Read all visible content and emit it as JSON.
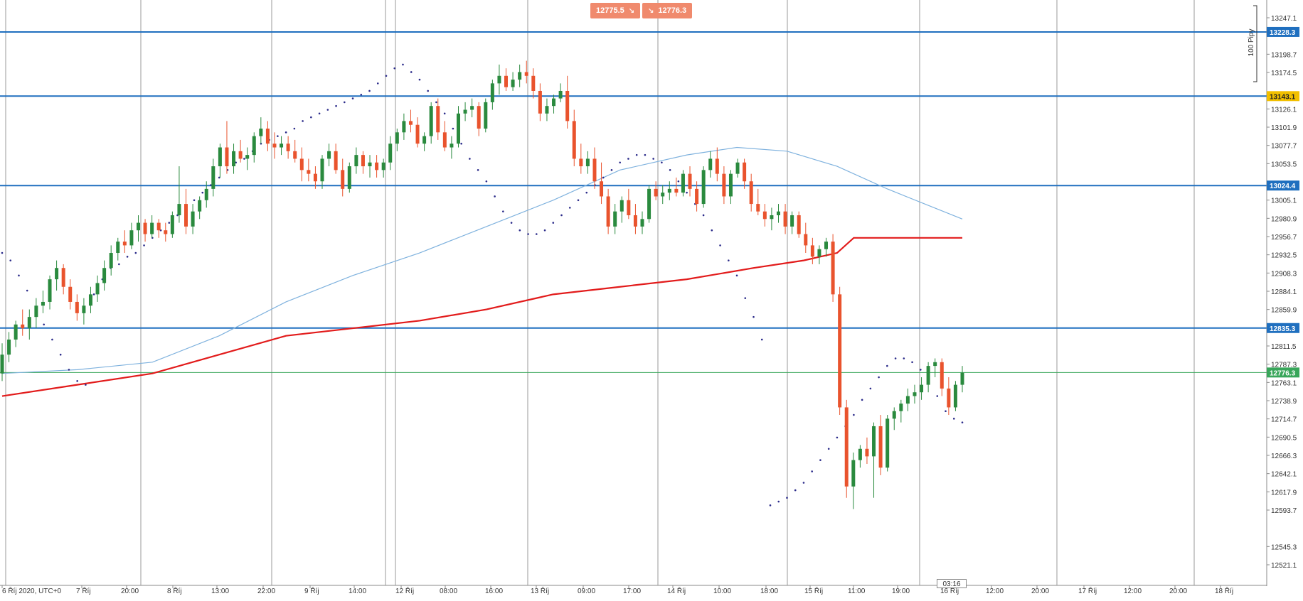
{
  "toolbar": {
    "sell_price": "12775.5",
    "buy_price": "12776.3",
    "sell_arrow": "↘",
    "buy_arrow": "↘"
  },
  "range_marker": {
    "label": "100 Pipy"
  },
  "countdown": "03:16",
  "colors": {
    "bull": "#2a8a3e",
    "bear": "#e9532d",
    "level_line": "#1f6fbf",
    "ma_slow": "#e21b1b",
    "ma_fast": "#7fb2de",
    "psar": "#2b2b8a",
    "current": "#38a65a",
    "warn_tag": "#f2c000"
  },
  "chart_data": {
    "type": "candlestick",
    "y_ticks": [
      "13247.1",
      "13198.7",
      "13174.5",
      "13126.1",
      "13101.9",
      "13077.7",
      "13053.5",
      "13005.1",
      "12980.9",
      "12956.7",
      "12932.5",
      "12908.3",
      "12884.1",
      "12859.9",
      "12811.5",
      "12787.3",
      "12763.1",
      "12738.9",
      "12714.7",
      "12690.5",
      "12666.3",
      "12642.1",
      "12617.9",
      "12593.7",
      "12545.3",
      "12521.1"
    ],
    "x_ticks": [
      "6 Říj 2020, UTC+0",
      "7 Říj",
      "20:00",
      "8 Říj",
      "13:00",
      "22:00",
      "9 Říj",
      "14:00",
      "12 Říj",
      "08:00",
      "16:00",
      "13 Říj",
      "09:00",
      "17:00",
      "14 Říj",
      "10:00",
      "18:00",
      "15 Říj",
      "11:00",
      "19:00",
      "16 Říj",
      "12:00",
      "20:00",
      "17 Říj",
      "12:00",
      "20:00",
      "18 Říj"
    ],
    "levels": [
      {
        "label": "13228.3",
        "value": 13228.3,
        "style": "blue"
      },
      {
        "label": "13143.1",
        "value": 13143.1,
        "style": "yellow"
      },
      {
        "label": "13024.4",
        "value": 13024.4,
        "style": "blue"
      },
      {
        "label": "12835.3",
        "value": 12835.3,
        "style": "blue"
      },
      {
        "label": "12776.3",
        "value": 12776.3,
        "style": "green"
      }
    ],
    "candles": [
      [
        12775,
        12815,
        12765,
        12800
      ],
      [
        12800,
        12830,
        12790,
        12820
      ],
      [
        12820,
        12845,
        12810,
        12840
      ],
      [
        12840,
        12860,
        12825,
        12835
      ],
      [
        12835,
        12860,
        12820,
        12850
      ],
      [
        12850,
        12875,
        12835,
        12865
      ],
      [
        12865,
        12885,
        12855,
        12870
      ],
      [
        12870,
        12905,
        12860,
        12900
      ],
      [
        12900,
        12925,
        12885,
        12915
      ],
      [
        12915,
        12920,
        12880,
        12890
      ],
      [
        12890,
        12900,
        12860,
        12870
      ],
      [
        12870,
        12880,
        12845,
        12855
      ],
      [
        12855,
        12875,
        12840,
        12865
      ],
      [
        12865,
        12890,
        12855,
        12880
      ],
      [
        12880,
        12905,
        12870,
        12895
      ],
      [
        12895,
        12925,
        12885,
        12915
      ],
      [
        12915,
        12945,
        12905,
        12935
      ],
      [
        12935,
        12955,
        12925,
        12950
      ],
      [
        12950,
        12965,
        12935,
        12945
      ],
      [
        12945,
        12975,
        12940,
        12965
      ],
      [
        12965,
        12985,
        12950,
        12975
      ],
      [
        12975,
        12980,
        12950,
        12960
      ],
      [
        12960,
        12985,
        12955,
        12975
      ],
      [
        12975,
        12980,
        12955,
        12965
      ],
      [
        12965,
        12975,
        12950,
        12960
      ],
      [
        12960,
        12990,
        12955,
        12985
      ],
      [
        12985,
        13050,
        12975,
        13000
      ],
      [
        13000,
        13020,
        12960,
        12970
      ],
      [
        12970,
        13000,
        12960,
        12990
      ],
      [
        12990,
        13010,
        12980,
        13005
      ],
      [
        13005,
        13030,
        12995,
        13020
      ],
      [
        13020,
        13060,
        13010,
        13050
      ],
      [
        13050,
        13080,
        13035,
        13075
      ],
      [
        13075,
        13110,
        13040,
        13050
      ],
      [
        13050,
        13080,
        13040,
        13070
      ],
      [
        13070,
        13085,
        13055,
        13060
      ],
      [
        13060,
        13075,
        13045,
        13065
      ],
      [
        13065,
        13095,
        13055,
        13090
      ],
      [
        13090,
        13115,
        13080,
        13100
      ],
      [
        13100,
        13110,
        13070,
        13080
      ],
      [
        13080,
        13095,
        13060,
        13075
      ],
      [
        13075,
        13090,
        13065,
        13080
      ],
      [
        13080,
        13090,
        13060,
        13070
      ],
      [
        13070,
        13085,
        13055,
        13060
      ],
      [
        13060,
        13075,
        13030,
        13045
      ],
      [
        13045,
        13060,
        13030,
        13040
      ],
      [
        13040,
        13050,
        13020,
        13030
      ],
      [
        13030,
        13065,
        13020,
        13060
      ],
      [
        13060,
        13080,
        13050,
        13070
      ],
      [
        13070,
        13080,
        13040,
        13045
      ],
      [
        13045,
        13060,
        13010,
        13020
      ],
      [
        13020,
        13055,
        13015,
        13050
      ],
      [
        13050,
        13075,
        13040,
        13065
      ],
      [
        13065,
        13070,
        13040,
        13050
      ],
      [
        13050,
        13065,
        13035,
        13055
      ],
      [
        13055,
        13065,
        13035,
        13045
      ],
      [
        13045,
        13060,
        13035,
        13055
      ],
      [
        13055,
        13090,
        13045,
        13080
      ],
      [
        13080,
        13100,
        13070,
        13095
      ],
      [
        13095,
        13120,
        13085,
        13110
      ],
      [
        13110,
        13125,
        13095,
        13105
      ],
      [
        13105,
        13115,
        13075,
        13080
      ],
      [
        13080,
        13095,
        13070,
        13090
      ],
      [
        13090,
        13135,
        13080,
        13130
      ],
      [
        13130,
        13140,
        13085,
        13095
      ],
      [
        13095,
        13110,
        13070,
        13075
      ],
      [
        13075,
        13090,
        13060,
        13080
      ],
      [
        13080,
        13130,
        13075,
        13120
      ],
      [
        13120,
        13135,
        13110,
        13125
      ],
      [
        13125,
        13140,
        13115,
        13130
      ],
      [
        13130,
        13135,
        13090,
        13100
      ],
      [
        13100,
        13140,
        13095,
        13135
      ],
      [
        13135,
        13165,
        13125,
        13160
      ],
      [
        13160,
        13185,
        13145,
        13170
      ],
      [
        13170,
        13180,
        13150,
        13155
      ],
      [
        13155,
        13175,
        13150,
        13165
      ],
      [
        13165,
        13185,
        13155,
        13175
      ],
      [
        13175,
        13190,
        13160,
        13170
      ],
      [
        13170,
        13180,
        13140,
        13150
      ],
      [
        13150,
        13160,
        13110,
        13120
      ],
      [
        13120,
        13140,
        13110,
        13130
      ],
      [
        13130,
        13145,
        13120,
        13140
      ],
      [
        13140,
        13160,
        13135,
        13150
      ],
      [
        13150,
        13170,
        13100,
        13110
      ],
      [
        13110,
        13125,
        13050,
        13060
      ],
      [
        13060,
        13080,
        13040,
        13050
      ],
      [
        13050,
        13070,
        13040,
        13060
      ],
      [
        13060,
        13075,
        13020,
        13030
      ],
      [
        13030,
        13055,
        13000,
        13010
      ],
      [
        13010,
        13020,
        12960,
        12970
      ],
      [
        12970,
        13000,
        12960,
        12990
      ],
      [
        12990,
        13010,
        12975,
        13005
      ],
      [
        13005,
        13020,
        12980,
        12985
      ],
      [
        12985,
        13000,
        12960,
        12970
      ],
      [
        12970,
        12990,
        12960,
        12980
      ],
      [
        12980,
        13025,
        12975,
        13020
      ],
      [
        13020,
        13030,
        13005,
        13010
      ],
      [
        13010,
        13025,
        13000,
        13015
      ],
      [
        13015,
        13030,
        13005,
        13020
      ],
      [
        13020,
        13035,
        13010,
        13015
      ],
      [
        13015,
        13045,
        13010,
        13040
      ],
      [
        13040,
        13050,
        13010,
        13020
      ],
      [
        13020,
        13030,
        12990,
        13000
      ],
      [
        13000,
        13050,
        12995,
        13045
      ],
      [
        13045,
        13070,
        13035,
        13060
      ],
      [
        13060,
        13075,
        13030,
        13040
      ],
      [
        13040,
        13050,
        13000,
        13010
      ],
      [
        13010,
        13045,
        13000,
        13040
      ],
      [
        13040,
        13060,
        13035,
        13055
      ],
      [
        13055,
        13060,
        13020,
        13030
      ],
      [
        13030,
        13040,
        12990,
        13000
      ],
      [
        13000,
        13020,
        12985,
        12990
      ],
      [
        12990,
        13000,
        12970,
        12980
      ],
      [
        12980,
        12995,
        12965,
        12985
      ],
      [
        12985,
        13000,
        12975,
        12990
      ],
      [
        12990,
        13000,
        12960,
        12970
      ],
      [
        12970,
        12990,
        12960,
        12985
      ],
      [
        12985,
        12990,
        12955,
        12960
      ],
      [
        12960,
        12975,
        12935,
        12945
      ],
      [
        12945,
        12955,
        12920,
        12930
      ],
      [
        12930,
        12945,
        12920,
        12940
      ],
      [
        12940,
        12955,
        12930,
        12950
      ],
      [
        12950,
        12960,
        12870,
        12880
      ],
      [
        12880,
        12890,
        12720,
        12730
      ],
      [
        12730,
        12740,
        12610,
        12625
      ],
      [
        12625,
        12670,
        12595,
        12660
      ],
      [
        12660,
        12680,
        12650,
        12675
      ],
      [
        12675,
        12690,
        12655,
        12665
      ],
      [
        12665,
        12710,
        12610,
        12705
      ],
      [
        12705,
        12720,
        12640,
        12650
      ],
      [
        12650,
        12720,
        12645,
        12715
      ],
      [
        12715,
        12730,
        12700,
        12725
      ],
      [
        12725,
        12740,
        12710,
        12735
      ],
      [
        12735,
        12755,
        12725,
        12745
      ],
      [
        12745,
        12760,
        12735,
        12750
      ],
      [
        12750,
        12770,
        12740,
        12760
      ],
      [
        12760,
        12790,
        12750,
        12785
      ],
      [
        12785,
        12795,
        12770,
        12790
      ],
      [
        12790,
        12795,
        12745,
        12755
      ],
      [
        12755,
        12770,
        12720,
        12730
      ],
      [
        12730,
        12765,
        12725,
        12760
      ],
      [
        12760,
        12785,
        12750,
        12776
      ]
    ],
    "ma_slow": [
      [
        0,
        12745
      ],
      [
        90,
        12760
      ],
      [
        180,
        12775
      ],
      [
        260,
        12800
      ],
      [
        340,
        12825
      ],
      [
        420,
        12835
      ],
      [
        500,
        12845
      ],
      [
        580,
        12860
      ],
      [
        660,
        12880
      ],
      [
        740,
        12890
      ],
      [
        820,
        12900
      ],
      [
        900,
        12915
      ],
      [
        960,
        12925
      ],
      [
        1000,
        12935
      ],
      [
        1020,
        12955
      ],
      [
        1070,
        12955
      ],
      [
        1150,
        12955
      ]
    ],
    "ma_fast": [
      [
        0,
        12775
      ],
      [
        90,
        12780
      ],
      [
        180,
        12790
      ],
      [
        260,
        12825
      ],
      [
        340,
        12870
      ],
      [
        420,
        12905
      ],
      [
        500,
        12935
      ],
      [
        580,
        12970
      ],
      [
        660,
        13005
      ],
      [
        740,
        13045
      ],
      [
        820,
        13065
      ],
      [
        880,
        13075
      ],
      [
        940,
        13070
      ],
      [
        1000,
        13050
      ],
      [
        1060,
        13020
      ],
      [
        1150,
        12980
      ]
    ],
    "psar": [
      [
        0,
        12935
      ],
      [
        10,
        12925
      ],
      [
        20,
        12905
      ],
      [
        30,
        12885
      ],
      [
        40,
        12860
      ],
      [
        50,
        12840
      ],
      [
        60,
        12820
      ],
      [
        70,
        12800
      ],
      [
        80,
        12780
      ],
      [
        90,
        12765
      ],
      [
        100,
        12760
      ],
      [
        110,
        12880
      ],
      [
        120,
        12900
      ],
      [
        130,
        12915
      ],
      [
        140,
        12920
      ],
      [
        150,
        12930
      ],
      [
        160,
        12935
      ],
      [
        170,
        12945
      ],
      [
        180,
        12955
      ],
      [
        190,
        12965
      ],
      [
        200,
        12975
      ],
      [
        210,
        12985
      ],
      [
        220,
        12995
      ],
      [
        230,
        13005
      ],
      [
        240,
        13015
      ],
      [
        250,
        13025
      ],
      [
        260,
        13035
      ],
      [
        270,
        13045
      ],
      [
        280,
        13055
      ],
      [
        290,
        13060
      ],
      [
        300,
        13070
      ],
      [
        310,
        13080
      ],
      [
        320,
        13085
      ],
      [
        330,
        13090
      ],
      [
        340,
        13095
      ],
      [
        350,
        13100
      ],
      [
        360,
        13110
      ],
      [
        370,
        13115
      ],
      [
        380,
        13120
      ],
      [
        390,
        13125
      ],
      [
        400,
        13130
      ],
      [
        410,
        13135
      ],
      [
        420,
        13140
      ],
      [
        430,
        13145
      ],
      [
        440,
        13150
      ],
      [
        450,
        13160
      ],
      [
        460,
        13170
      ],
      [
        470,
        13180
      ],
      [
        480,
        13185
      ],
      [
        490,
        13175
      ],
      [
        500,
        13165
      ],
      [
        510,
        13150
      ],
      [
        520,
        13135
      ],
      [
        530,
        13120
      ],
      [
        540,
        13100
      ],
      [
        550,
        13080
      ],
      [
        560,
        13060
      ],
      [
        570,
        13045
      ],
      [
        580,
        13030
      ],
      [
        590,
        13010
      ],
      [
        600,
        12990
      ],
      [
        610,
        12975
      ],
      [
        620,
        12965
      ],
      [
        630,
        12960
      ],
      [
        640,
        12960
      ],
      [
        650,
        12965
      ],
      [
        660,
        12975
      ],
      [
        670,
        12985
      ],
      [
        680,
        12995
      ],
      [
        690,
        13005
      ],
      [
        700,
        13015
      ],
      [
        710,
        13025
      ],
      [
        720,
        13035
      ],
      [
        730,
        13045
      ],
      [
        740,
        13055
      ],
      [
        750,
        13060
      ],
      [
        760,
        13065
      ],
      [
        770,
        13065
      ],
      [
        780,
        13060
      ],
      [
        790,
        13055
      ],
      [
        800,
        13045
      ],
      [
        810,
        13030
      ],
      [
        820,
        13015
      ],
      [
        830,
        13000
      ],
      [
        840,
        12985
      ],
      [
        850,
        12965
      ],
      [
        860,
        12945
      ],
      [
        870,
        12925
      ],
      [
        880,
        12905
      ],
      [
        890,
        12875
      ],
      [
        900,
        12850
      ],
      [
        910,
        12820
      ],
      [
        920,
        12600
      ],
      [
        930,
        12605
      ],
      [
        940,
        12610
      ],
      [
        950,
        12620
      ],
      [
        960,
        12630
      ],
      [
        970,
        12645
      ],
      [
        980,
        12660
      ],
      [
        990,
        12675
      ],
      [
        1000,
        12690
      ],
      [
        1010,
        12705
      ],
      [
        1020,
        12720
      ],
      [
        1030,
        12740
      ],
      [
        1040,
        12755
      ],
      [
        1050,
        12770
      ],
      [
        1060,
        12785
      ],
      [
        1070,
        12795
      ],
      [
        1080,
        12795
      ],
      [
        1090,
        12790
      ],
      [
        1100,
        12780
      ],
      [
        1110,
        12765
      ],
      [
        1120,
        12745
      ],
      [
        1130,
        12725
      ],
      [
        1140,
        12715
      ],
      [
        1150,
        12710
      ]
    ]
  }
}
